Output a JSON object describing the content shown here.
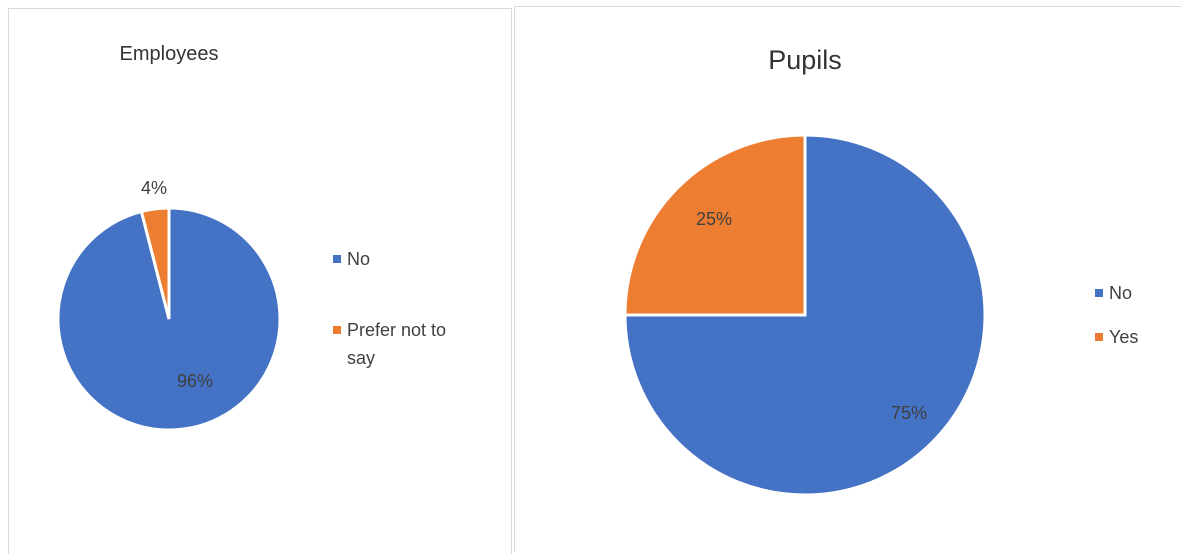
{
  "chart_data": [
    {
      "type": "pie",
      "title": "Employees",
      "categories": [
        "No",
        "Prefer not to say"
      ],
      "values": [
        96,
        4
      ],
      "data_labels": [
        "96%",
        "4%"
      ],
      "colors": [
        "#4472c4",
        "#ed7d31"
      ],
      "legend": [
        "No",
        "Prefer not to say"
      ],
      "legend_position": "right"
    },
    {
      "type": "pie",
      "title": "Pupils",
      "categories": [
        "No",
        "Yes"
      ],
      "values": [
        75,
        25
      ],
      "data_labels": [
        "75%",
        "25%"
      ],
      "colors": [
        "#4472c4",
        "#ed7d31"
      ],
      "legend": [
        "No",
        "Yes"
      ],
      "legend_position": "right"
    }
  ]
}
